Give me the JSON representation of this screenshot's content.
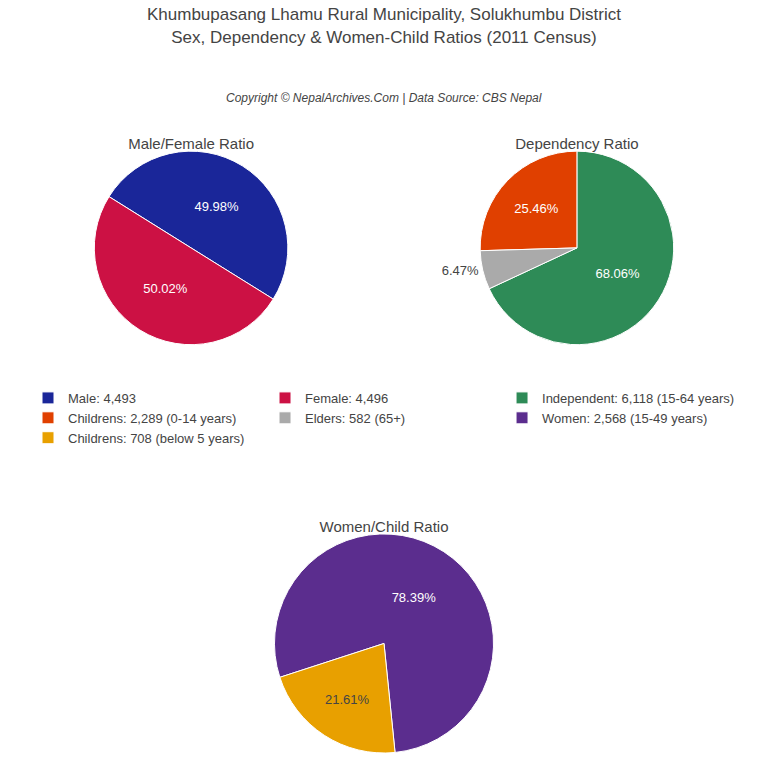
{
  "title": "Khumbupasang Lhamu Rural Municipality, Solukhumbu District",
  "subtitle": "Sex, Dependency & Women-Child Ratios (2011 Census)",
  "annotations": [
    "Copyright © NepalArchives.Com | Data Source: CBS Nepal"
  ],
  "legend": "center",
  "chart_data": [
    {
      "type": "pie",
      "title": "Male/Female Ratio",
      "categories": [
        "Male: 4,493",
        "Female: 4,496"
      ],
      "values": [
        49.98,
        50.02
      ],
      "value_labels": [
        "49.98%",
        "50.02%"
      ],
      "colors": [
        "#1a2699",
        "#cc1144"
      ],
      "data_labels": true
    },
    {
      "type": "pie",
      "title": "Dependency Ratio",
      "categories": [
        "Independent: 6,118 (15-64 years)",
        "Childrens: 2,289 (0-14 years)",
        "Elders: 582 (65+)"
      ],
      "values": [
        68.06,
        25.46,
        6.47
      ],
      "value_labels": [
        "68.06%",
        "25.46%",
        "6.47%"
      ],
      "colors": [
        "#2e8b57",
        "#e04000",
        "#aaaaaa"
      ],
      "data_labels": true
    },
    {
      "type": "pie",
      "title": "Women/Child Ratio",
      "categories": [
        "Women: 2,568 (15-49 years)",
        "Childrens: 708 (below 5 years)"
      ],
      "values": [
        78.39,
        21.61
      ],
      "value_labels": [
        "78.39%",
        "21.61%"
      ],
      "colors": [
        "#5b2d8e",
        "#e8a000"
      ],
      "data_labels": true
    }
  ]
}
